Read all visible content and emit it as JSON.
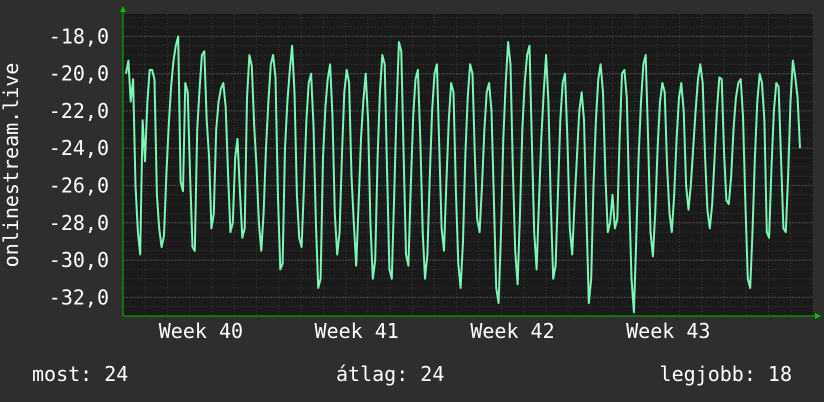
{
  "colors": {
    "background": "#2e2e2e",
    "plot_background": "#1a1a1a",
    "grid": "#3a3a3a",
    "grid_major": "#4a4a4a",
    "line": "#7df5b4",
    "axis_arrow": "#00c000",
    "text": "#ffffff"
  },
  "chart_data": {
    "type": "line",
    "title": "",
    "ylabel": "onlinestream.live",
    "xlabel": "",
    "ylim": [
      -33.0,
      -16.8
    ],
    "yticks": [
      "-18,0",
      "-20,0",
      "-22,0",
      "-24,0",
      "-26,0",
      "-28,0",
      "-30,0",
      "-32,0"
    ],
    "ytick_values": [
      -18,
      -20,
      -22,
      -24,
      -26,
      -28,
      -30,
      -32
    ],
    "xlim": [
      0,
      31
    ],
    "xticks": [
      "Week 40",
      "Week 41",
      "Week 42",
      "Week 43"
    ],
    "xtick_values": [
      3.5,
      10.5,
      17.5,
      24.5
    ],
    "grid": true,
    "series": [
      {
        "values": [
          -20.0,
          -19.3,
          -21.5,
          -20.3,
          -26.0,
          -28.5,
          -29.7,
          -22.5,
          -24.7,
          -21.5,
          -19.8,
          -19.8,
          -20.3,
          -26.5,
          -28.3,
          -29.3,
          -28.7,
          -25.5,
          -22.8,
          -20.7,
          -19.3,
          -18.5,
          -18.0,
          -25.8,
          -26.3,
          -20.5,
          -21.0,
          -25.5,
          -29.3,
          -29.5,
          -23.0,
          -20.8,
          -19.0,
          -18.8,
          -22.5,
          -24.5,
          -28.3,
          -27.5,
          -23.0,
          -21.5,
          -20.8,
          -20.5,
          -21.8,
          -25.3,
          -28.5,
          -28.0,
          -24.5,
          -23.5,
          -26.3,
          -28.8,
          -28.3,
          -21.3,
          -19.0,
          -19.6,
          -22.8,
          -25.0,
          -28.0,
          -29.5,
          -27.5,
          -24.0,
          -21.5,
          -19.5,
          -19.0,
          -20.2,
          -26.5,
          -30.5,
          -30.2,
          -24.0,
          -21.5,
          -19.8,
          -18.5,
          -21.0,
          -26.5,
          -28.8,
          -29.3,
          -26.0,
          -22.5,
          -20.5,
          -20.0,
          -22.8,
          -28.0,
          -31.5,
          -31.0,
          -24.5,
          -21.8,
          -20.3,
          -19.5,
          -22.3,
          -27.5,
          -29.7,
          -28.5,
          -24.3,
          -21.0,
          -19.8,
          -20.5,
          -25.5,
          -28.0,
          -30.3,
          -27.0,
          -23.5,
          -21.5,
          -20.0,
          -22.5,
          -28.0,
          -31.0,
          -30.0,
          -24.5,
          -21.0,
          -19.0,
          -19.5,
          -25.3,
          -30.5,
          -31.0,
          -26.5,
          -22.0,
          -18.3,
          -18.8,
          -24.5,
          -29.7,
          -30.3,
          -26.0,
          -22.3,
          -20.3,
          -19.8,
          -23.5,
          -28.5,
          -31.0,
          -29.7,
          -25.5,
          -22.0,
          -20.0,
          -19.5,
          -24.0,
          -28.3,
          -29.5,
          -25.8,
          -22.5,
          -20.5,
          -21.0,
          -26.3,
          -30.2,
          -31.5,
          -29.0,
          -24.3,
          -21.3,
          -19.5,
          -20.0,
          -24.5,
          -27.8,
          -28.5,
          -26.0,
          -23.0,
          -21.0,
          -20.5,
          -22.0,
          -26.8,
          -31.5,
          -32.3,
          -28.5,
          -23.5,
          -20.5,
          -18.3,
          -19.5,
          -25.0,
          -29.5,
          -31.3,
          -27.5,
          -23.0,
          -20.5,
          -19.0,
          -18.5,
          -23.5,
          -28.5,
          -30.5,
          -27.0,
          -23.5,
          -21.0,
          -19.0,
          -21.5,
          -27.0,
          -31.0,
          -30.3,
          -26.5,
          -22.5,
          -20.5,
          -20.0,
          -23.5,
          -28.3,
          -29.7,
          -27.0,
          -24.5,
          -22.0,
          -21.0,
          -22.5,
          -27.5,
          -32.3,
          -31.0,
          -26.0,
          -22.5,
          -20.3,
          -19.5,
          -21.0,
          -25.5,
          -28.5,
          -28.0,
          -26.5,
          -28.3,
          -27.8,
          -23.5,
          -20.0,
          -19.8,
          -21.3,
          -26.5,
          -31.0,
          -32.8,
          -29.0,
          -24.5,
          -21.5,
          -19.5,
          -19.0,
          -23.5,
          -28.5,
          -29.8,
          -27.5,
          -24.0,
          -21.5,
          -20.5,
          -21.0,
          -25.0,
          -27.5,
          -28.5,
          -26.5,
          -23.5,
          -21.3,
          -20.5,
          -22.0,
          -26.0,
          -27.3,
          -26.0,
          -24.0,
          -22.0,
          -20.3,
          -19.5,
          -20.5,
          -24.5,
          -27.3,
          -28.3,
          -27.0,
          -24.5,
          -22.0,
          -20.2,
          -20.3,
          -24.3,
          -26.8,
          -27.0,
          -25.5,
          -23.0,
          -21.3,
          -20.5,
          -20.3,
          -22.3,
          -27.0,
          -31.0,
          -31.5,
          -28.5,
          -24.5,
          -21.5,
          -20.0,
          -20.5,
          -22.5,
          -28.5,
          -28.8,
          -25.0,
          -22.0,
          -20.5,
          -20.7,
          -24.5,
          -28.3,
          -28.5,
          -25.5,
          -21.5,
          -19.3,
          -20.2,
          -21.3,
          -24.0
        ]
      }
    ]
  },
  "stats": {
    "now": "most: 24",
    "avg": "átlag: 24",
    "best": "legjobb: 18"
  }
}
